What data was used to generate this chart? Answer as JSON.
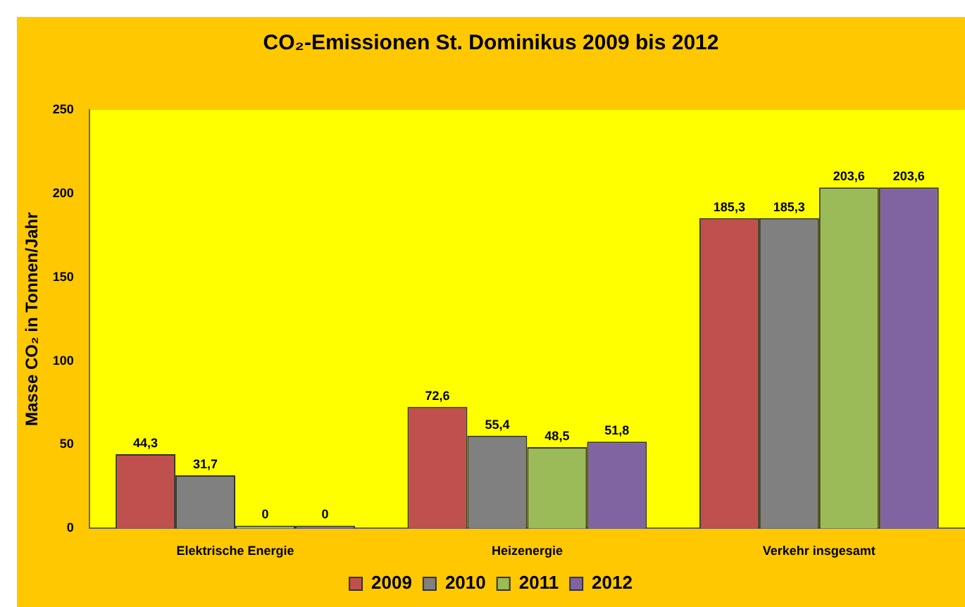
{
  "chart_data": {
    "type": "bar",
    "title": "CO₂-Emissionen St. Dominikus 2009 bis 2012",
    "ylabel": "Masse CO₂ in Tonnen/Jahr",
    "categories": [
      "Elektrische Energie",
      "Heizenergie",
      "Verkehr insgesamt"
    ],
    "series": [
      {
        "name": "2009",
        "color": "#c0504d",
        "values": [
          44.3,
          72.6,
          185.3
        ],
        "value_labels": [
          "44,3",
          "72,6",
          "185,3"
        ]
      },
      {
        "name": "2010",
        "color": "#808080",
        "values": [
          31.7,
          55.4,
          185.3
        ],
        "value_labels": [
          "31,7",
          "55,4",
          "185,3"
        ]
      },
      {
        "name": "2011",
        "color": "#9bbb59",
        "values": [
          0,
          48.5,
          203.6
        ],
        "value_labels": [
          "0",
          "48,5",
          "203,6"
        ]
      },
      {
        "name": "2012",
        "color": "#8064a2",
        "values": [
          0,
          51.8,
          203.6
        ],
        "value_labels": [
          "0",
          "51,8",
          "203,6"
        ]
      }
    ],
    "ylim": [
      0,
      250
    ],
    "yticks": [
      0,
      50,
      100,
      150,
      200,
      250
    ],
    "grid": false,
    "legend": "bottom"
  }
}
